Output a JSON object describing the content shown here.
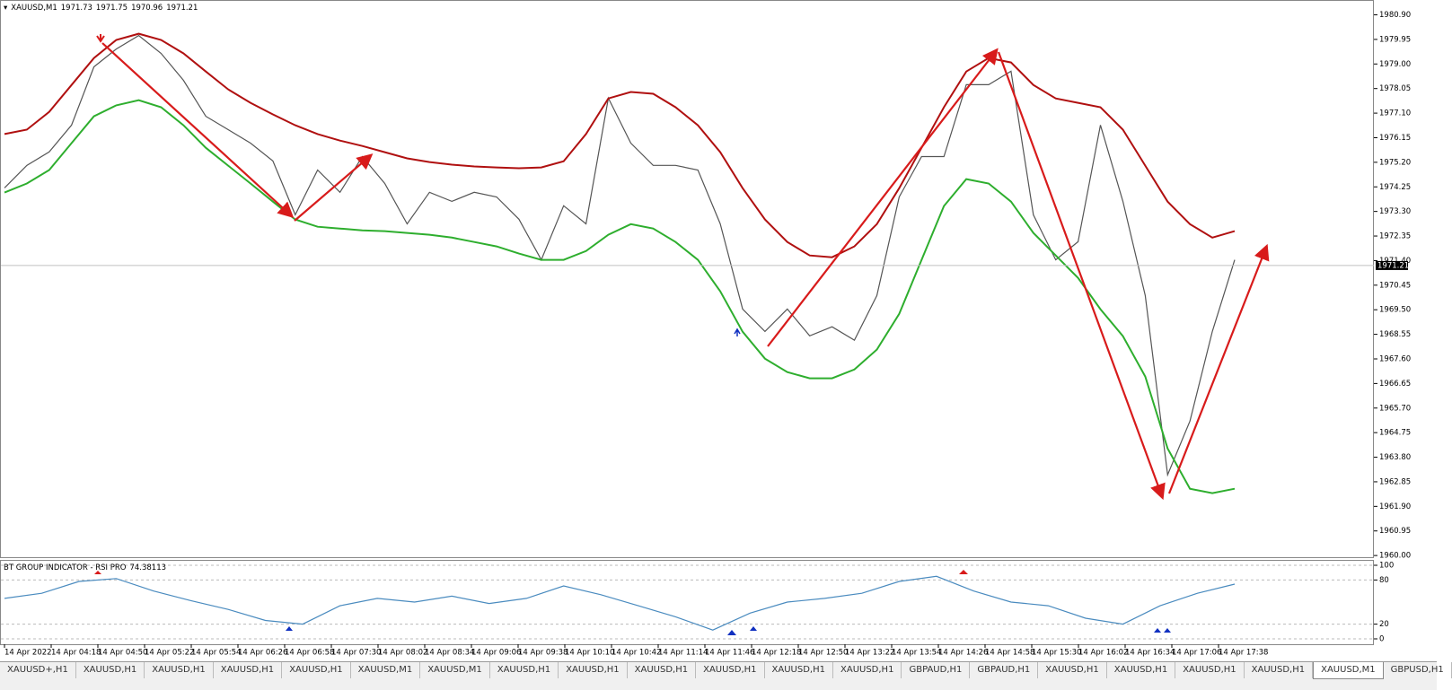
{
  "chart_data": [
    {
      "type": "line",
      "title": "XAUUSD,M1",
      "ohlc": [
        1971.73,
        1971.75,
        1970.96,
        1971.21
      ],
      "x_labels": [
        "14 Apr 2022",
        "14 Apr 04:18",
        "14 Apr 04:50",
        "14 Apr 05:22",
        "14 Apr 05:54",
        "14 Apr 06:26",
        "14 Apr 06:58",
        "14 Apr 07:30",
        "14 Apr 08:02",
        "14 Apr 08:34",
        "14 Apr 09:06",
        "14 Apr 09:38",
        "14 Apr 10:10",
        "14 Apr 10:42",
        "14 Apr 11:14",
        "14 Apr 11:46",
        "14 Apr 12:18",
        "14 Apr 12:50",
        "14 Apr 13:22",
        "14 Apr 13:54",
        "14 Apr 14:26",
        "14 Apr 14:58",
        "14 Apr 15:30",
        "14 Apr 16:02",
        "14 Apr 16:34",
        "14 Apr 17:06",
        "14 Apr 17:38"
      ],
      "ylim": [
        1959.9,
        1981.3
      ],
      "yticks": [
        {
          "value": 1960.0,
          "label": "1960.00"
        },
        {
          "value": 1960.95,
          "label": "1960.95"
        },
        {
          "value": 1961.9,
          "label": "1961.90"
        },
        {
          "value": 1962.85,
          "label": "1962.85"
        },
        {
          "value": 1963.8,
          "label": "1963.80"
        },
        {
          "value": 1964.75,
          "label": "1964.75"
        },
        {
          "value": 1965.7,
          "label": "1965.70"
        },
        {
          "value": 1966.65,
          "label": "1966.65"
        },
        {
          "value": 1967.6,
          "label": "1967.60"
        },
        {
          "value": 1968.55,
          "label": "1968.55"
        },
        {
          "value": 1969.5,
          "label": "1969.50"
        },
        {
          "value": 1970.45,
          "label": "1970.45"
        },
        {
          "value": 1971.4,
          "label": "1971.40"
        },
        {
          "value": 1972.35,
          "label": "1972.35"
        },
        {
          "value": 1973.3,
          "label": "1973.30"
        },
        {
          "value": 1974.25,
          "label": "1974.25"
        },
        {
          "value": 1975.2,
          "label": "1975.20"
        },
        {
          "value": 1976.15,
          "label": "1976.15"
        },
        {
          "value": 1977.1,
          "label": "1977.10"
        },
        {
          "value": 1978.05,
          "label": "1978.05"
        },
        {
          "value": 1979.0,
          "label": "1979.00"
        },
        {
          "value": 1979.95,
          "label": "1979.95"
        },
        {
          "value": 1980.9,
          "label": "1980.90"
        }
      ],
      "series": [
        {
          "color": "#555555",
          "values": [
            1974.21,
            1975.08,
            1975.6,
            1976.64,
            1978.89,
            1979.58,
            1980.1,
            1979.41,
            1978.37,
            1976.98,
            1976.46,
            1975.94,
            1975.25,
            1973.17,
            1974.9,
            1974.04,
            1975.42,
            1974.38,
            1972.82,
            1974.04,
            1973.69,
            1974.04,
            1973.86,
            1973.0,
            1971.43,
            1973.52,
            1972.82,
            1977.68,
            1975.94,
            1975.08,
            1975.08,
            1974.9,
            1972.82,
            1969.53,
            1968.66,
            1969.53,
            1968.49,
            1968.84,
            1968.32,
            1970.05,
            1973.86,
            1975.42,
            1975.42,
            1978.2,
            1978.2,
            1978.72,
            1973.17,
            1971.43,
            1972.13,
            1976.64,
            1973.69,
            1970.05,
            1963.12,
            1965.2,
            1968.66,
            1971.43
          ]
        },
        {
          "color": "#b01010",
          "values": [
            1976.29,
            1976.46,
            1977.15,
            1978.19,
            1979.23,
            1979.93,
            1980.17,
            1979.93,
            1979.41,
            1978.71,
            1978.02,
            1977.5,
            1977.05,
            1976.63,
            1976.29,
            1976.04,
            1975.83,
            1975.59,
            1975.35,
            1975.21,
            1975.11,
            1975.04,
            1975.0,
            1974.97,
            1975.0,
            1975.24,
            1976.29,
            1977.67,
            1977.92,
            1977.85,
            1977.33,
            1976.63,
            1975.59,
            1974.2,
            1972.99,
            1972.12,
            1971.6,
            1971.53,
            1971.95,
            1972.81,
            1974.2,
            1975.76,
            1977.33,
            1978.71,
            1979.23,
            1979.06,
            1978.19,
            1977.67,
            1977.5,
            1977.33,
            1976.46,
            1975.07,
            1973.68,
            1972.81,
            1972.29,
            1972.54
          ]
        },
        {
          "color": "#2eae2e",
          "values": [
            1974.03,
            1974.38,
            1974.9,
            1975.94,
            1976.98,
            1977.4,
            1977.6,
            1977.33,
            1976.63,
            1975.76,
            1975.07,
            1974.38,
            1973.68,
            1972.99,
            1972.71,
            1972.64,
            1972.57,
            1972.54,
            1972.47,
            1972.4,
            1972.29,
            1972.12,
            1971.95,
            1971.67,
            1971.43,
            1971.43,
            1971.77,
            1972.4,
            1972.81,
            1972.64,
            1972.12,
            1971.43,
            1970.21,
            1968.65,
            1967.61,
            1967.09,
            1966.85,
            1966.85,
            1967.19,
            1967.96,
            1969.34,
            1971.43,
            1973.51,
            1974.55,
            1974.38,
            1973.68,
            1972.47,
            1971.6,
            1970.73,
            1969.52,
            1968.48,
            1966.92,
            1964.14,
            1962.58,
            1962.41,
            1962.58
          ]
        }
      ]
    },
    {
      "type": "line",
      "title": "BT GROUP INDICATOR - RSI PRO",
      "current": 74.38113,
      "ylim": [
        0,
        100
      ],
      "yticks": [
        0,
        20,
        80,
        100
      ],
      "series": [
        {
          "color": "#4a8bbf",
          "values": [
            55,
            62,
            78,
            82,
            65,
            52,
            40,
            25,
            20,
            45,
            55,
            50,
            58,
            48,
            55,
            72,
            60,
            45,
            30,
            12,
            35,
            50,
            55,
            62,
            78,
            85,
            65,
            50,
            45,
            28,
            20,
            45,
            62,
            74.38113
          ]
        }
      ]
    }
  ],
  "tabs": [
    "XAUUSD+,H1",
    "XAUUSD,H1",
    "XAUUSD,H1",
    "XAUUSD,H1",
    "XAUUSD,H1",
    "XAUUSD,M1",
    "XAUUSD,M1",
    "XAUUSD,H1",
    "XAUUSD,H1",
    "XAUUSD,H1",
    "XAUUSD,H1",
    "XAUUSD,H1",
    "XAUUSD,H1",
    "GBPAUD,H1",
    "GBPAUD,H1",
    "XAUUSD,H1",
    "XAUUSD,H1",
    "XAUUSD,H1",
    "XAUUSD,H1",
    "XAUUSD,M1",
    "GBPUSD,H1"
  ],
  "active_tab": 19
}
